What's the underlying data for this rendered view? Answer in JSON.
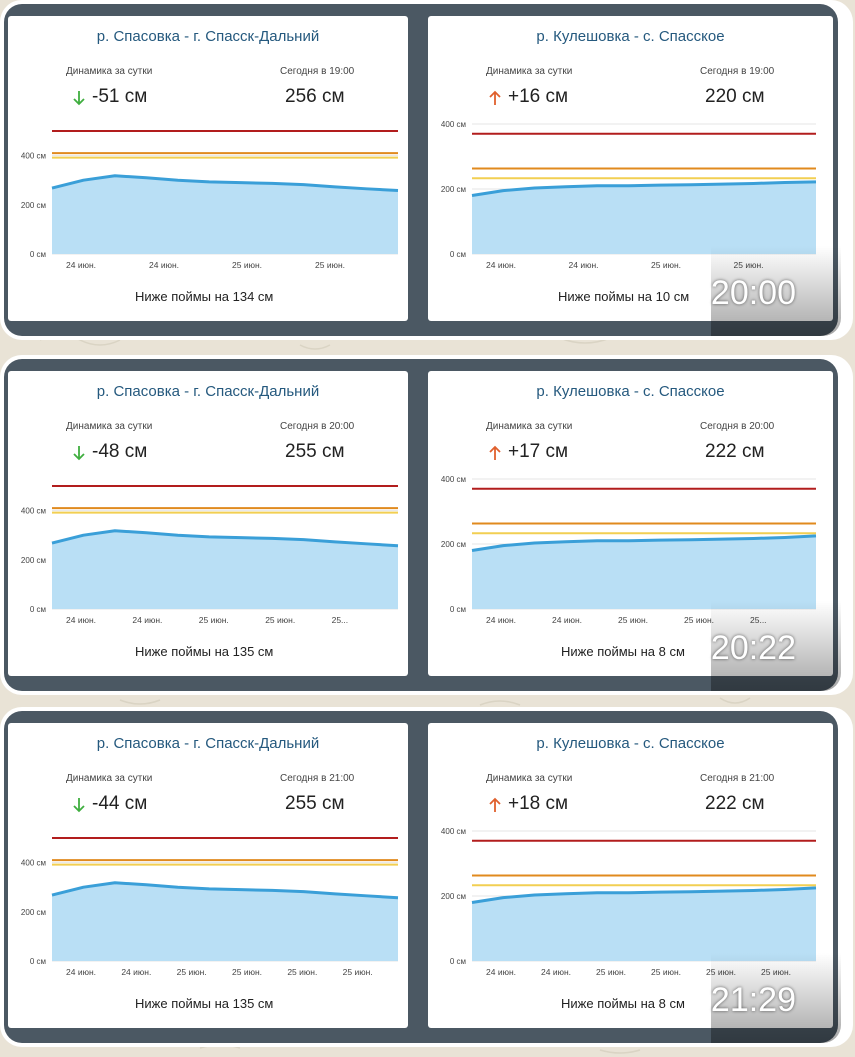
{
  "messages": [
    {
      "time": "20:00",
      "left": {
        "title": "р. Спасовка - г. Спасск-Дальний",
        "dyn_label": "Динамика за сутки",
        "today_label": "Сегодня в 19:00",
        "dyn_value": "-51 см",
        "dyn_direction": "down",
        "today_value": "256 см",
        "y_ticks": [
          "400 см",
          "200 см",
          "0 см"
        ],
        "x_ticks": [
          "24 июн.",
          "24 июн.",
          "25 июн.",
          "25 июн."
        ],
        "footer": "Ниже поймы на 134 см"
      },
      "right": {
        "title": "р. Кулешовка - с. Спасское",
        "dyn_label": "Динамика за сутки",
        "today_label": "Сегодня в 19:00",
        "dyn_value": "+16 см",
        "dyn_direction": "up",
        "today_value": "220 см",
        "y_ticks": [
          "400 см",
          "200 см",
          "0 см"
        ],
        "x_ticks": [
          "24 июн.",
          "24 июн.",
          "25 июн.",
          "25 июн."
        ],
        "footer": "Ниже поймы на 10 см"
      }
    },
    {
      "time": "20:22",
      "left": {
        "title": "р. Спасовка - г. Спасск-Дальний",
        "dyn_label": "Динамика за сутки",
        "today_label": "Сегодня в 20:00",
        "dyn_value": "-48 см",
        "dyn_direction": "down",
        "today_value": "255 см",
        "y_ticks": [
          "400 см",
          "200 см",
          "0 см"
        ],
        "x_ticks": [
          "24 июн.",
          "24 июн.",
          "25 июн.",
          "25 июн.",
          "25..."
        ],
        "footer": "Ниже поймы на 135 см"
      },
      "right": {
        "title": "р. Кулешовка - с. Спасское",
        "dyn_label": "Динамика за сутки",
        "today_label": "Сегодня в 20:00",
        "dyn_value": "+17 см",
        "dyn_direction": "up",
        "today_value": "222 см",
        "y_ticks": [
          "400 см",
          "200 см",
          "0 см"
        ],
        "x_ticks": [
          "24 июн.",
          "24 июн.",
          "25 июн.",
          "25 июн.",
          "25..."
        ],
        "footer": "Ниже поймы на 8 см"
      }
    },
    {
      "time": "21:29",
      "left": {
        "title": "р. Спасовка - г. Спасск-Дальний",
        "dyn_label": "Динамика за сутки",
        "today_label": "Сегодня в 21:00",
        "dyn_value": "-44 см",
        "dyn_direction": "down",
        "today_value": "255 см",
        "y_ticks": [
          "400 см",
          "200 см",
          "0 см"
        ],
        "x_ticks": [
          "24 июн.",
          "24 июн.",
          "25 июн.",
          "25 июн.",
          "25 июн.",
          "25 июн."
        ],
        "footer": "Ниже поймы на 135 см"
      },
      "right": {
        "title": "р. Кулешовка - с. Спасское",
        "dyn_label": "Динамика за сутки",
        "today_label": "Сегодня в 21:00",
        "dyn_value": "+18 см",
        "dyn_direction": "up",
        "today_value": "222 см",
        "y_ticks": [
          "400 см",
          "200 см",
          "0 см"
        ],
        "x_ticks": [
          "24 июн.",
          "24 июн.",
          "25 июн.",
          "25 июн.",
          "25 июн.",
          "25 июн."
        ],
        "footer": "Ниже поймы на 8 см"
      }
    }
  ],
  "colors": {
    "danger_line": "#b21d1d",
    "orange_line": "#e08a1e",
    "yellow_line": "#f2cf52",
    "series_line": "#3a9fd8",
    "series_fill": "#b9dff5",
    "down_arrow": "#3fae3f",
    "up_arrow": "#e0602d",
    "title": "#25597e"
  },
  "chart_data": [
    {
      "type": "area",
      "ylim": [
        0,
        500
      ],
      "y_ticks": [
        0,
        200,
        400
      ],
      "thresholds": [
        500,
        410,
        392
      ],
      "x": [
        0,
        1,
        2,
        3,
        4,
        5,
        6,
        7,
        8,
        9,
        10,
        11
      ],
      "series": [
        {
          "values": [
            268,
            300,
            318,
            310,
            300,
            293,
            290,
            287,
            282,
            273,
            265,
            258
          ]
        }
      ]
    },
    {
      "type": "area",
      "ylim": [
        0,
        400
      ],
      "y_ticks": [
        0,
        200,
        400
      ],
      "thresholds": [
        370,
        263,
        233
      ],
      "x": [
        0,
        1,
        2,
        3,
        4,
        5,
        6,
        7,
        8,
        9,
        10,
        11
      ],
      "series": [
        {
          "values": [
            180,
            195,
            203,
            207,
            210,
            210,
            212,
            213,
            215,
            217,
            220,
            222
          ]
        }
      ]
    },
    {
      "type": "area",
      "ylim": [
        0,
        500
      ],
      "y_ticks": [
        0,
        200,
        400
      ],
      "thresholds": [
        500,
        410,
        392
      ],
      "x": [
        0,
        1,
        2,
        3,
        4,
        5,
        6,
        7,
        8,
        9,
        10,
        11
      ],
      "series": [
        {
          "values": [
            268,
            300,
            318,
            310,
            300,
            293,
            290,
            287,
            282,
            273,
            265,
            257
          ]
        }
      ]
    },
    {
      "type": "area",
      "ylim": [
        0,
        400
      ],
      "y_ticks": [
        0,
        200,
        400
      ],
      "thresholds": [
        370,
        263,
        233
      ],
      "x": [
        0,
        1,
        2,
        3,
        4,
        5,
        6,
        7,
        8,
        9,
        10,
        11
      ],
      "series": [
        {
          "values": [
            180,
            195,
            203,
            207,
            210,
            210,
            212,
            213,
            215,
            217,
            220,
            225
          ]
        }
      ]
    },
    {
      "type": "area",
      "ylim": [
        0,
        500
      ],
      "y_ticks": [
        0,
        200,
        400
      ],
      "thresholds": [
        500,
        410,
        392
      ],
      "x": [
        0,
        1,
        2,
        3,
        4,
        5,
        6,
        7,
        8,
        9,
        10,
        11
      ],
      "series": [
        {
          "values": [
            268,
            300,
            318,
            310,
            300,
            293,
            290,
            287,
            282,
            273,
            265,
            257
          ]
        }
      ]
    },
    {
      "type": "area",
      "ylim": [
        0,
        400
      ],
      "y_ticks": [
        0,
        200,
        400
      ],
      "thresholds": [
        370,
        263,
        233
      ],
      "x": [
        0,
        1,
        2,
        3,
        4,
        5,
        6,
        7,
        8,
        9,
        10,
        11
      ],
      "series": [
        {
          "values": [
            180,
            195,
            203,
            207,
            210,
            210,
            212,
            213,
            215,
            217,
            220,
            225
          ]
        }
      ]
    }
  ]
}
